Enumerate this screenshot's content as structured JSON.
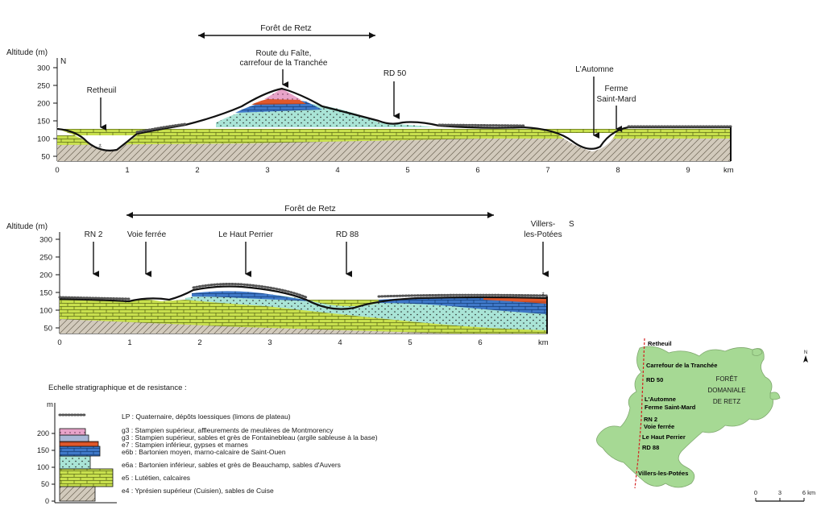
{
  "colors": {
    "lp": "#ffffff",
    "g3_meulieres": "#e8a3c9",
    "g3_fontainebleau": "#a9b7d6",
    "e7_stampien": "#e0582b",
    "e6b_bartonien_moyen": "#3f78c8",
    "e6a_bartonien_inf": "#a9e4d6",
    "e5_lutetien": "#c8e04e",
    "e4_ypresien": "#d2cabc",
    "map_fill": "#a6d994",
    "route": "#d42020"
  },
  "profile1": {
    "forest_label": "Forêt de Retz",
    "axis_title": "Altitude (m)",
    "orientation": "N",
    "y_ticks": [
      "300",
      "250",
      "200",
      "150",
      "100",
      "50"
    ],
    "x_ticks": [
      "0",
      "1",
      "2",
      "3",
      "4",
      "5",
      "6",
      "7",
      "8",
      "9"
    ],
    "unit": "km",
    "places": [
      {
        "label": "Retheuil"
      },
      {
        "label": "Route du Faîte,"
      },
      {
        "label": "carrefour de la Tranchée"
      },
      {
        "label": "RD 50"
      },
      {
        "label": "L'Automne"
      },
      {
        "label": "Ferme"
      },
      {
        "label": "Saint-Mard"
      }
    ]
  },
  "profile2": {
    "forest_label": "Forêt de Retz",
    "axis_title": "Altitude (m)",
    "orientation": "S",
    "y_ticks": [
      "300",
      "250",
      "200",
      "150",
      "100",
      "50"
    ],
    "x_ticks": [
      "0",
      "1",
      "2",
      "3",
      "4",
      "5",
      "6"
    ],
    "unit": "km",
    "places": [
      {
        "label": "RN 2"
      },
      {
        "label": "Voie ferrée"
      },
      {
        "label": "Le Haut Perrier"
      },
      {
        "label": "RD 88"
      },
      {
        "label": "Villers-"
      },
      {
        "label": "les-Potées"
      }
    ]
  },
  "legend": {
    "title": "Echelle stratigraphique et de resistance :",
    "axis_unit": "m",
    "y_ticks": [
      "200",
      "150",
      "100",
      "50",
      "0"
    ],
    "items": [
      {
        "code": "LP",
        "text": "LP : Quaternaire, dépôts loessiques (limons de plateau)"
      },
      {
        "code": "g3",
        "text": "g3 : Stampien supérieur, affleurements de meulières de Montmorency"
      },
      {
        "code": "g3",
        "text": "g3 : Stampien supérieur, sables et grès de Fontainebleau (argile sableuse à la base)"
      },
      {
        "code": "e7",
        "text": "e7 : Stampien inférieur, gypses et marnes"
      },
      {
        "code": "e6b",
        "text": "e6b : Bartonien moyen, marno-calcaire de Saint-Ouen"
      },
      {
        "code": "e6a",
        "text": "e6a : Bartonien inférieur, sables et grès de Beauchamp, sables d'Auvers"
      },
      {
        "code": "e5",
        "text": "e5 : Lutétien, calcaires"
      },
      {
        "code": "e4",
        "text": "e4 : Yprésien supérieur (Cuisien), sables de Cuise"
      }
    ]
  },
  "map": {
    "forest_name": [
      "FORÊT",
      "DOMANIALE",
      "DE RETZ"
    ],
    "route_points": [
      {
        "label": "Retheuil"
      },
      {
        "label": "Carrefour de la Tranchée"
      },
      {
        "label": "RD 50"
      },
      {
        "label": "L'Automne"
      },
      {
        "label": "Ferme Saint-Mard"
      },
      {
        "label": "RN 2"
      },
      {
        "label": "Voie ferrée"
      },
      {
        "label": "Le Haut Perrier"
      },
      {
        "label": "RD 88"
      },
      {
        "label": "Villers-les-Potées"
      }
    ],
    "north": "N",
    "scale": [
      "0",
      "3",
      "6 km"
    ]
  }
}
